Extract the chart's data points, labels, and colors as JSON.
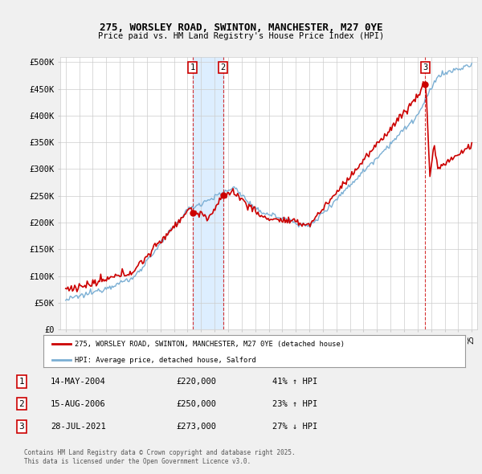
{
  "title_line1": "275, WORSLEY ROAD, SWINTON, MANCHESTER, M27 0YE",
  "title_line2": "Price paid vs. HM Land Registry's House Price Index (HPI)",
  "ylabel_ticks": [
    "£0",
    "£50K",
    "£100K",
    "£150K",
    "£200K",
    "£250K",
    "£300K",
    "£350K",
    "£400K",
    "£450K",
    "£500K"
  ],
  "ytick_values": [
    0,
    50000,
    100000,
    150000,
    200000,
    250000,
    300000,
    350000,
    400000,
    450000,
    500000
  ],
  "xlim_start": 1994.6,
  "xlim_end": 2025.4,
  "ylim": [
    0,
    510000
  ],
  "legend_label_red": "275, WORSLEY ROAD, SWINTON, MANCHESTER, M27 0YE (detached house)",
  "legend_label_blue": "HPI: Average price, detached house, Salford",
  "transactions": [
    {
      "id": 1,
      "date": "14-MAY-2004",
      "price": 220000,
      "hpi_change": "41%",
      "direction": "↑",
      "year": 2004.37
    },
    {
      "id": 2,
      "date": "15-AUG-2006",
      "price": 250000,
      "hpi_change": "23%",
      "direction": "↑",
      "year": 2006.62
    },
    {
      "id": 3,
      "date": "28-JUL-2021",
      "price": 273000,
      "hpi_change": "27%",
      "direction": "↓",
      "year": 2021.57
    }
  ],
  "footnote1": "Contains HM Land Registry data © Crown copyright and database right 2025.",
  "footnote2": "This data is licensed under the Open Government Licence v3.0.",
  "red_color": "#cc0000",
  "blue_color": "#7bafd4",
  "shade_color": "#ddeeff",
  "background_color": "#f0f0f0",
  "plot_bg_color": "#ffffff",
  "grid_color": "#cccccc"
}
